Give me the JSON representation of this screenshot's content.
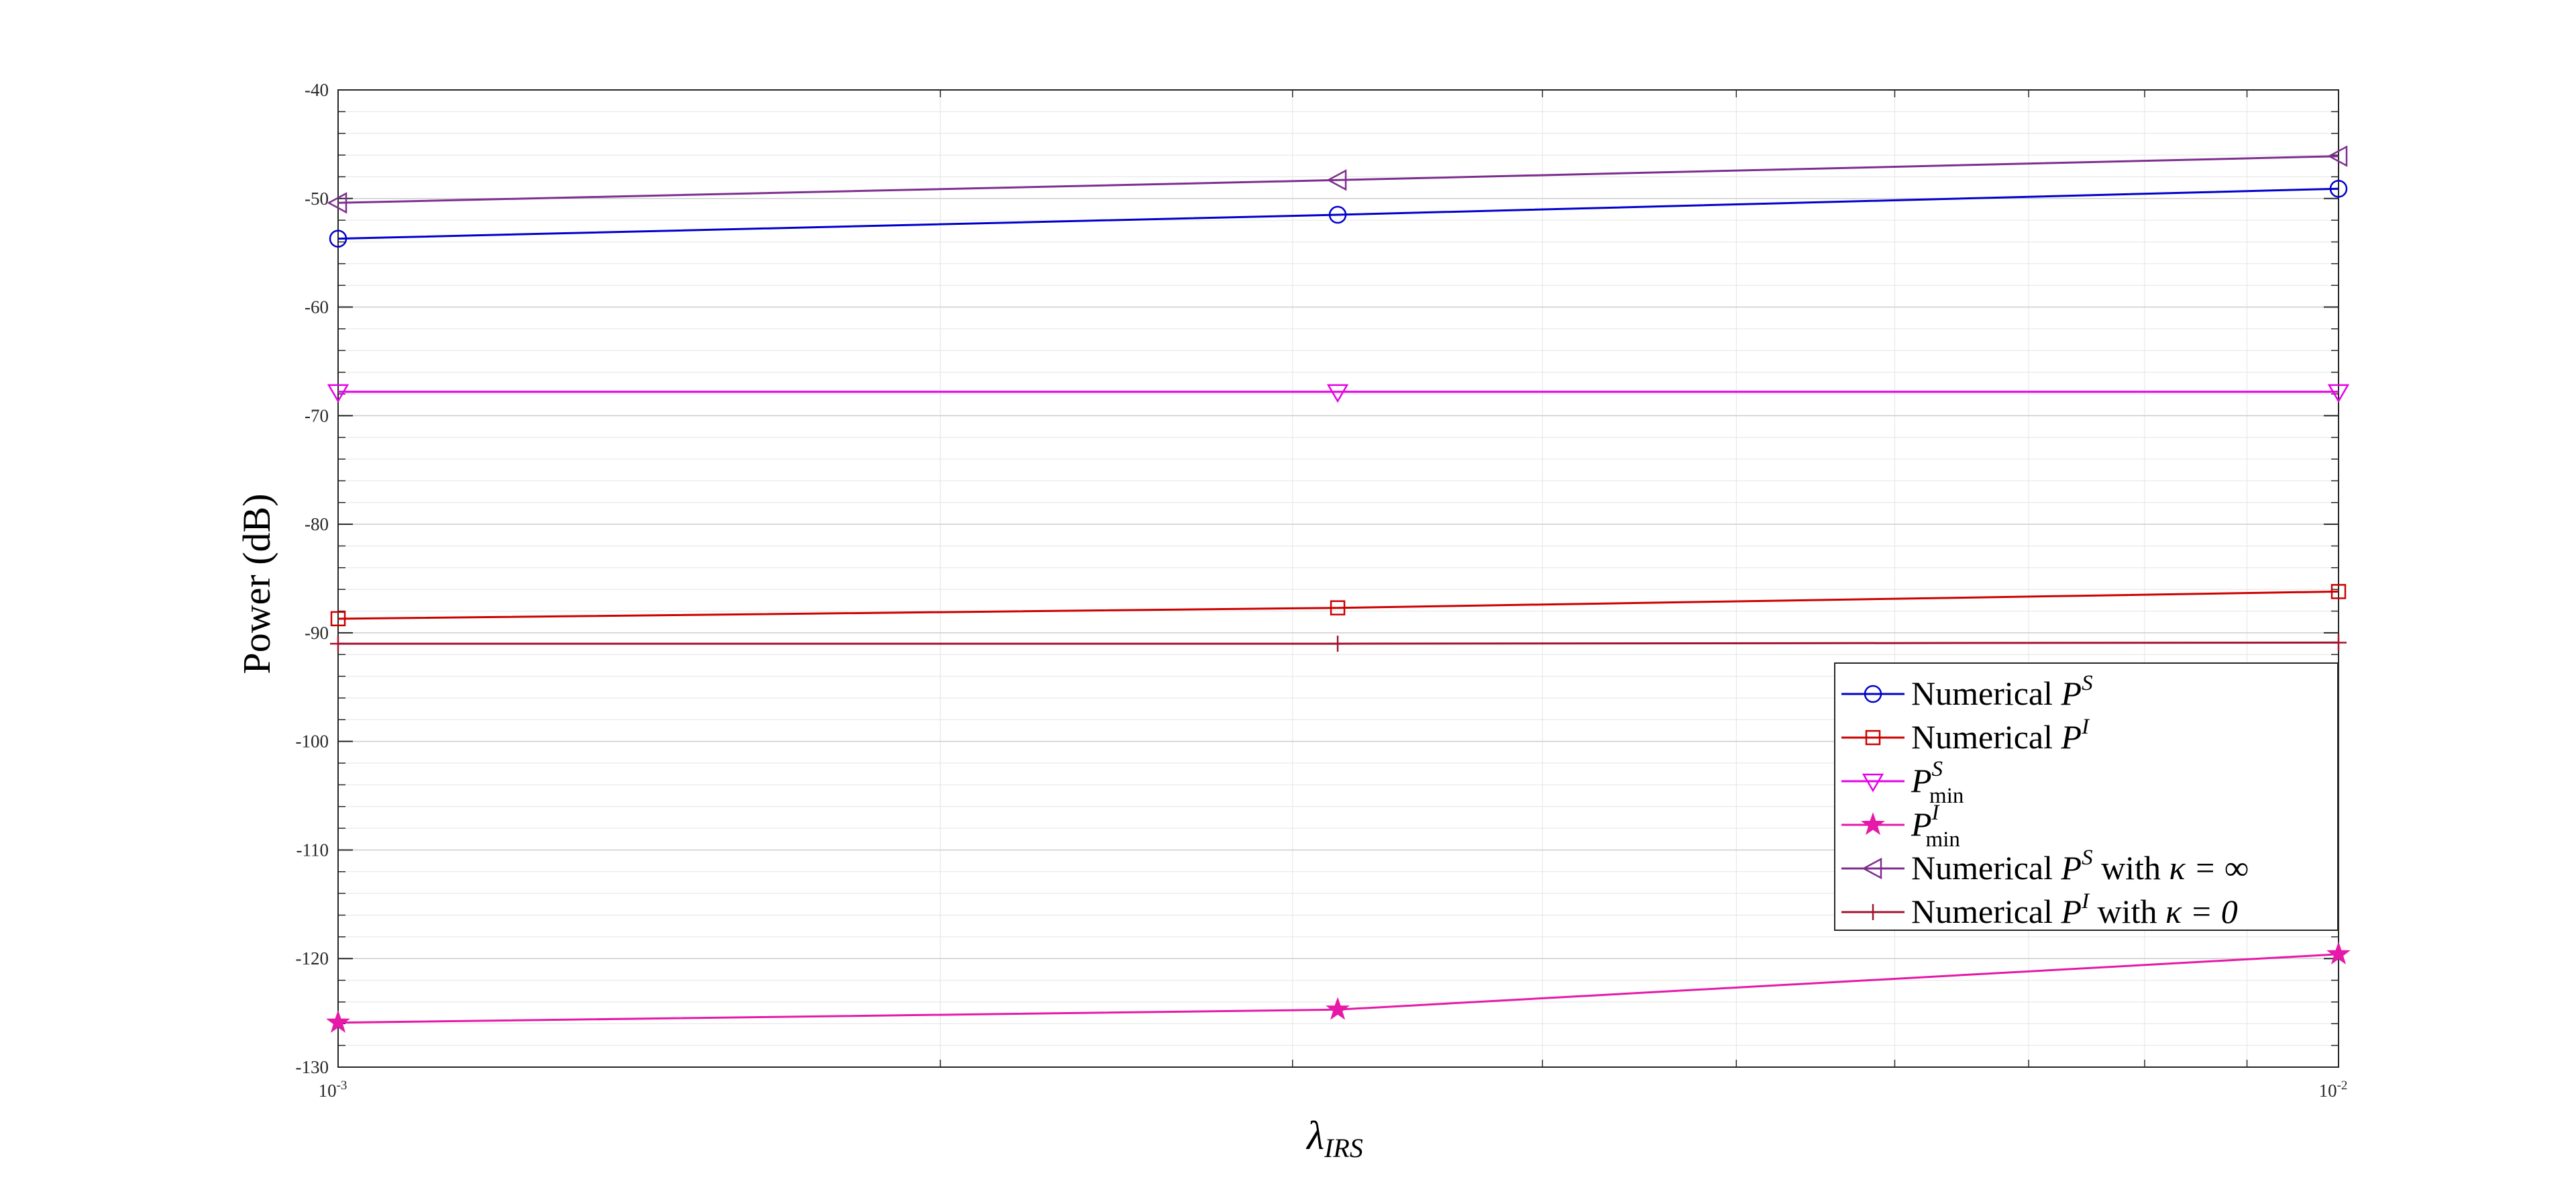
{
  "chart_data": {
    "type": "line",
    "x_scale": "log",
    "xlim": [
      0.001,
      0.01
    ],
    "ylim": [
      -130,
      -40
    ],
    "grid": true,
    "minor_grid": true,
    "legend_position": "lower-right",
    "xlabel": {
      "main": "λ",
      "sub": "IRS"
    },
    "ylabel": "Power (dB)",
    "x_ticks": [
      {
        "value": 0.001,
        "base": "10",
        "exp": "-3"
      },
      {
        "value": 0.01,
        "base": "10",
        "exp": "-2"
      }
    ],
    "y_ticks": [
      {
        "value": -40,
        "label": "-40"
      },
      {
        "value": -50,
        "label": "-50"
      },
      {
        "value": -60,
        "label": "-60"
      },
      {
        "value": -70,
        "label": "-70"
      },
      {
        "value": -80,
        "label": "-80"
      },
      {
        "value": -90,
        "label": "-90"
      },
      {
        "value": -100,
        "label": "-100"
      },
      {
        "value": -110,
        "label": "-110"
      },
      {
        "value": -120,
        "label": "-120"
      },
      {
        "value": -130,
        "label": "-130"
      }
    ],
    "series": [
      {
        "id": "ps",
        "marker": "circle",
        "color": "#0000cc",
        "legend": {
          "prefix": "Numerical ",
          "sym": "P",
          "sup": "S",
          "sub": "",
          "suffix": "",
          "kappa": ""
        },
        "x": [
          0.001,
          0.00316,
          0.01
        ],
        "y": [
          -53.7,
          -51.5,
          -49.1
        ]
      },
      {
        "id": "pi",
        "marker": "square",
        "color": "#cc0000",
        "legend": {
          "prefix": "Numerical ",
          "sym": "P",
          "sup": "I",
          "sub": "",
          "suffix": "",
          "kappa": ""
        },
        "x": [
          0.001,
          0.00316,
          0.01
        ],
        "y": [
          -88.7,
          -87.7,
          -86.2
        ]
      },
      {
        "id": "psmin",
        "marker": "triangle-down",
        "color": "#e600e6",
        "legend": {
          "prefix": "",
          "sym": "P",
          "sup": "S",
          "sub": "min",
          "suffix": "",
          "kappa": ""
        },
        "x": [
          0.001,
          0.00316,
          0.01
        ],
        "y": [
          -67.8,
          -67.8,
          -67.8
        ]
      },
      {
        "id": "pimin",
        "marker": "star",
        "color": "#e619a8",
        "legend": {
          "prefix": "",
          "sym": "P",
          "sup": "I",
          "sub": "min",
          "suffix": "",
          "kappa": ""
        },
        "x": [
          0.001,
          0.00316,
          0.01
        ],
        "y": [
          -125.9,
          -124.7,
          -119.6
        ]
      },
      {
        "id": "psinf",
        "marker": "triangle-left",
        "color": "#7e2f8e",
        "legend": {
          "prefix": "Numerical ",
          "sym": "P",
          "sup": "S",
          "sub": "",
          "suffix": " with ",
          "kappa": "κ = ∞"
        },
        "x": [
          0.001,
          0.00316,
          0.01
        ],
        "y": [
          -50.4,
          -48.3,
          -46.1
        ]
      },
      {
        "id": "pi0",
        "marker": "plus",
        "color": "#a2142f",
        "legend": {
          "prefix": "Numerical ",
          "sym": "P",
          "sup": "I",
          "sub": "",
          "suffix": " with ",
          "kappa": "κ = 0"
        },
        "x": [
          0.001,
          0.00316,
          0.01
        ],
        "y": [
          -91.0,
          -91.0,
          -90.9
        ]
      }
    ]
  }
}
